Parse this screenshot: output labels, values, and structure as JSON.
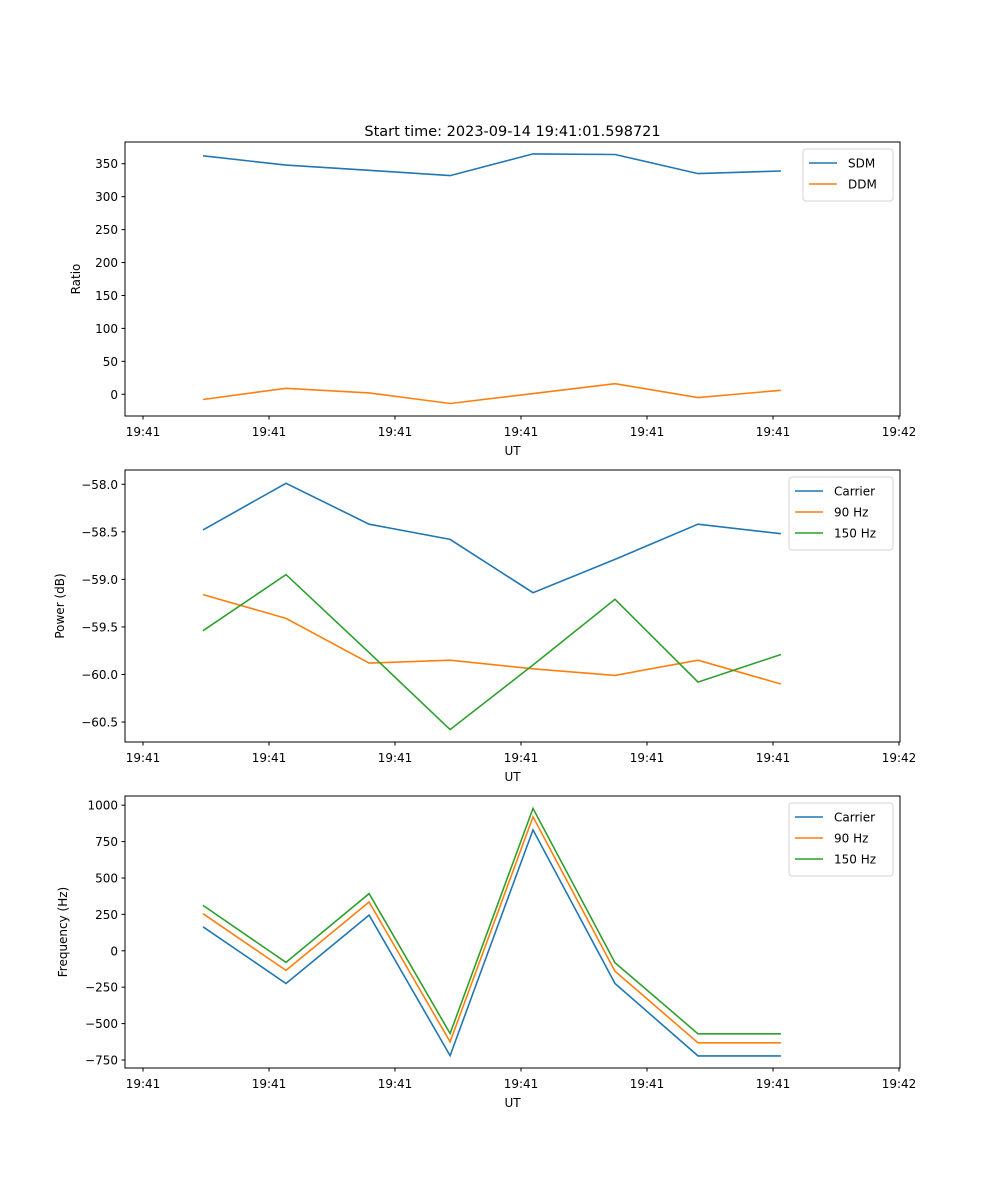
{
  "chart_data": [
    {
      "type": "line",
      "title": "Start time: 2023-09-14 19:41:01.598721",
      "xlabel": "UT",
      "ylabel": "Ratio",
      "x": [
        0.476,
        1.135,
        1.794,
        2.437,
        3.095,
        3.746,
        4.405,
        5.063
      ],
      "xlim": [
        -0.143,
        6.008
      ],
      "xticks": [
        0,
        1,
        2,
        3,
        4,
        5,
        6
      ],
      "xtick_labels": [
        "19:41",
        "19:41",
        "19:41",
        "19:41",
        "19:41",
        "19:41",
        "19:42"
      ],
      "ylim": [
        -33,
        383
      ],
      "yticks": [
        0,
        50,
        100,
        150,
        200,
        250,
        300,
        350
      ],
      "ytick_labels": [
        "0",
        "50",
        "100",
        "150",
        "200",
        "250",
        "300",
        "350"
      ],
      "grid": false,
      "legend": "top-right",
      "series": [
        {
          "name": "SDM",
          "color": "#1f77b4",
          "values": [
            362,
            348,
            340,
            332,
            365,
            364,
            335,
            339
          ]
        },
        {
          "name": "DDM",
          "color": "#ff7f0e",
          "values": [
            -8,
            9,
            2,
            -14,
            1,
            16,
            -5,
            6
          ]
        }
      ]
    },
    {
      "type": "line",
      "title": "",
      "xlabel": "UT",
      "ylabel": "Power (dB)",
      "x": [
        0.476,
        1.135,
        1.794,
        2.437,
        3.095,
        3.746,
        4.405,
        5.063
      ],
      "xlim": [
        -0.143,
        6.008
      ],
      "xticks": [
        0,
        1,
        2,
        3,
        4,
        5,
        6
      ],
      "xtick_labels": [
        "19:41",
        "19:41",
        "19:41",
        "19:41",
        "19:41",
        "19:41",
        "19:42"
      ],
      "ylim": [
        -60.71,
        -57.85
      ],
      "yticks": [
        -58.0,
        -58.5,
        -59.0,
        -59.5,
        -60.0,
        -60.5
      ],
      "ytick_labels": [
        "−58.0",
        "−58.5",
        "−59.0",
        "−59.5",
        "−60.0",
        "−60.5"
      ],
      "grid": false,
      "legend": "top-right",
      "series": [
        {
          "name": "Carrier",
          "color": "#1f77b4",
          "values": [
            -58.48,
            -57.99,
            -58.42,
            -58.58,
            -59.14,
            -58.79,
            -58.42,
            -58.52
          ]
        },
        {
          "name": "90 Hz",
          "color": "#ff7f0e",
          "values": [
            -59.16,
            -59.41,
            -59.88,
            -59.85,
            -59.94,
            -60.01,
            -59.85,
            -60.1
          ]
        },
        {
          "name": "150 Hz",
          "color": "#2ca02c",
          "values": [
            -59.54,
            -58.95,
            -59.77,
            -60.58,
            -59.9,
            -59.21,
            -60.08,
            -59.79
          ]
        }
      ]
    },
    {
      "type": "line",
      "title": "",
      "xlabel": "UT",
      "ylabel": "Frequency (Hz)",
      "x": [
        0.476,
        1.135,
        1.794,
        2.437,
        3.095,
        3.746,
        4.405,
        5.063
      ],
      "xlim": [
        -0.143,
        6.008
      ],
      "xticks": [
        0,
        1,
        2,
        3,
        4,
        5,
        6
      ],
      "xtick_labels": [
        "19:41",
        "19:41",
        "19:41",
        "19:41",
        "19:41",
        "19:41",
        "19:42"
      ],
      "ylim": [
        -805,
        1063
      ],
      "yticks": [
        1000,
        750,
        500,
        250,
        0,
        -250,
        -500,
        -750
      ],
      "ytick_labels": [
        "1000",
        "750",
        "500",
        "250",
        "0",
        "−250",
        "−500",
        "−750"
      ],
      "grid": false,
      "legend": "top-right",
      "series": [
        {
          "name": "Carrier",
          "color": "#1f77b4",
          "values": [
            165,
            -225,
            245,
            -720,
            830,
            -225,
            -722,
            -722
          ]
        },
        {
          "name": "90 Hz",
          "color": "#ff7f0e",
          "values": [
            255,
            -135,
            335,
            -625,
            920,
            -140,
            -632,
            -632
          ]
        },
        {
          "name": "150 Hz",
          "color": "#2ca02c",
          "values": [
            312,
            -80,
            393,
            -568,
            978,
            -82,
            -570,
            -570
          ]
        }
      ]
    }
  ]
}
